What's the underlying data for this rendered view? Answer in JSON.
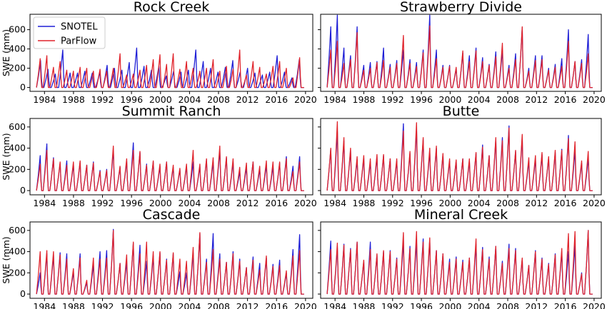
{
  "colors": {
    "snotel": "#1f1fd6",
    "parflow": "#e0242c",
    "axis": "#000000",
    "legend_border": "#cccccc"
  },
  "legend": {
    "position": "top-left",
    "entries": [
      "SNOTEL",
      "ParFlow"
    ]
  },
  "chart_data": [
    {
      "type": "line",
      "title": "Rock Creek",
      "xlabel": "",
      "ylabel": "SWE (mm)",
      "xlim": [
        1982,
        2021
      ],
      "ylim": [
        -40,
        760
      ],
      "xticks": [
        1984,
        1988,
        1992,
        1996,
        2000,
        2004,
        2008,
        2012,
        2016,
        2020
      ],
      "yticks": [
        0,
        200,
        400,
        600
      ],
      "show_yticklabels": true,
      "legend": true,
      "series": [
        {
          "name": "SNOTEL",
          "peaks": [
            280,
            190,
            140,
            390,
            150,
            150,
            170,
            150,
            160,
            230,
            200,
            180,
            260,
            410,
            220,
            180,
            220,
            120,
            170,
            160,
            180,
            390,
            270,
            200,
            160,
            210,
            280,
            160,
            200,
            150,
            130,
            160,
            330,
            160,
            100,
            290
          ]
        },
        {
          "name": "ParFlow",
          "peaks": [
            300,
            330,
            210,
            270,
            180,
            170,
            210,
            200,
            170,
            190,
            170,
            200,
            350,
            130,
            140,
            180,
            230,
            290,
            340,
            240,
            350,
            190,
            270,
            200,
            170,
            200,
            290,
            170,
            220,
            190,
            390,
            130,
            270,
            210,
            140,
            220,
            270,
            200,
            100,
            310
          ]
        }
      ]
    },
    {
      "type": "line",
      "title": "Strawberry Divide",
      "xlabel": "",
      "ylabel": "",
      "xlim": [
        1982,
        2021
      ],
      "ylim": [
        -40,
        760
      ],
      "xticks": [
        1984,
        1988,
        1992,
        1996,
        2000,
        2004,
        2008,
        2012,
        2016,
        2020
      ],
      "yticks": [
        0,
        200,
        400,
        600
      ],
      "show_yticklabels": false,
      "legend": false,
      "series": [
        {
          "name": "SNOTEL",
          "peaks": [
            630,
            750,
            410,
            330,
            630,
            230,
            260,
            270,
            410,
            240,
            280,
            390,
            290,
            260,
            390,
            750,
            390,
            230,
            230,
            200,
            360,
            330,
            410,
            310,
            240,
            370,
            390,
            230,
            350,
            620,
            200,
            330,
            330,
            200,
            240,
            300,
            600,
            270,
            290,
            550
          ]
        },
        {
          "name": "ParFlow",
          "peaks": [
            390,
            480,
            250,
            290,
            570,
            180,
            200,
            260,
            280,
            210,
            250,
            540,
            250,
            220,
            360,
            640,
            300,
            210,
            220,
            210,
            380,
            270,
            380,
            270,
            230,
            320,
            460,
            200,
            290,
            630,
            170,
            280,
            290,
            180,
            210,
            220,
            480,
            270,
            250,
            350
          ]
        }
      ]
    },
    {
      "type": "line",
      "title": "Summit Ranch",
      "xlabel": "",
      "ylabel": "SWE (mm)",
      "xlim": [
        1982,
        2021
      ],
      "ylim": [
        -40,
        680
      ],
      "xticks": [
        1984,
        1988,
        1992,
        1996,
        2000,
        2004,
        2008,
        2012,
        2016,
        2020
      ],
      "yticks": [
        0,
        200,
        400,
        600
      ],
      "show_yticklabels": true,
      "legend": false,
      "series": [
        {
          "name": "SNOTEL",
          "peaks": [
            330,
            440,
            310,
            260,
            280,
            250,
            270,
            240,
            270,
            190,
            200,
            390,
            220,
            280,
            450,
            360,
            250,
            270,
            230,
            270,
            220,
            200,
            230,
            270,
            230,
            290,
            270,
            380,
            310,
            270,
            180,
            220,
            270,
            200,
            240,
            230,
            260,
            320,
            230,
            320
          ]
        },
        {
          "name": "ParFlow",
          "peaks": [
            250,
            380,
            300,
            270,
            240,
            270,
            280,
            240,
            260,
            180,
            190,
            420,
            230,
            300,
            380,
            370,
            240,
            280,
            250,
            270,
            240,
            210,
            250,
            380,
            250,
            300,
            310,
            420,
            320,
            300,
            220,
            260,
            270,
            230,
            280,
            270,
            270,
            300,
            180,
            270
          ]
        }
      ]
    },
    {
      "type": "line",
      "title": "Butte",
      "xlabel": "",
      "ylabel": "",
      "xlim": [
        1982,
        2021
      ],
      "ylim": [
        -40,
        680
      ],
      "xticks": [
        1984,
        1988,
        1992,
        1996,
        2000,
        2004,
        2008,
        2012,
        2016,
        2020
      ],
      "yticks": [
        0,
        200,
        400,
        600
      ],
      "show_yticklabels": false,
      "legend": false,
      "series": [
        {
          "name": "SNOTEL",
          "peaks": [
            390,
            560,
            470,
            380,
            290,
            310,
            270,
            320,
            330,
            300,
            280,
            630,
            350,
            590,
            480,
            370,
            400,
            340,
            280,
            280,
            300,
            280,
            350,
            430,
            330,
            480,
            500,
            610,
            370,
            500,
            280,
            300,
            340,
            310,
            360,
            390,
            520,
            380,
            260,
            310
          ]
        },
        {
          "name": "ParFlow",
          "peaks": [
            400,
            650,
            500,
            400,
            320,
            330,
            300,
            340,
            340,
            300,
            300,
            560,
            370,
            640,
            500,
            400,
            420,
            350,
            300,
            290,
            300,
            300,
            360,
            410,
            330,
            500,
            470,
            590,
            380,
            530,
            310,
            330,
            360,
            320,
            380,
            380,
            490,
            460,
            280,
            370
          ]
        }
      ]
    },
    {
      "type": "line",
      "title": "Cascade",
      "xlabel": "",
      "ylabel": "SWE (mm)",
      "xlim": [
        1982,
        2021
      ],
      "ylim": [
        -40,
        680
      ],
      "xticks": [
        1984,
        1988,
        1992,
        1996,
        2000,
        2004,
        2008,
        2012,
        2016,
        2020
      ],
      "yticks": [
        0,
        200,
        400,
        600
      ],
      "show_yticklabels": true,
      "legend": false,
      "series": [
        {
          "name": "SNOTEL",
          "peaks": [
            200,
            380,
            370,
            390,
            380,
            210,
            380,
            110,
            280,
            400,
            410,
            610,
            290,
            310,
            480,
            460,
            310,
            360,
            390,
            330,
            380,
            210,
            200,
            390,
            570,
            330,
            570,
            380,
            300,
            400,
            330,
            250,
            350,
            290,
            340,
            280,
            320,
            200,
            420,
            560
          ]
        },
        {
          "name": "ParFlow",
          "peaks": [
            400,
            410,
            400,
            370,
            330,
            240,
            340,
            130,
            340,
            330,
            340,
            600,
            290,
            370,
            490,
            380,
            490,
            400,
            400,
            320,
            390,
            330,
            310,
            440,
            580,
            300,
            420,
            330,
            300,
            380,
            310,
            250,
            320,
            230,
            360,
            260,
            270,
            220,
            360,
            410
          ]
        }
      ]
    },
    {
      "type": "line",
      "title": "Mineral Creek",
      "xlabel": "",
      "ylabel": "",
      "xlim": [
        1982,
        2021
      ],
      "ylim": [
        -40,
        680
      ],
      "xticks": [
        1984,
        1988,
        1992,
        1996,
        2000,
        2004,
        2008,
        2012,
        2016,
        2020
      ],
      "yticks": [
        0,
        200,
        400,
        600
      ],
      "show_yticklabels": false,
      "legend": false,
      "series": [
        {
          "name": "SNOTEL",
          "peaks": [
            500,
            440,
            470,
            430,
            490,
            310,
            490,
            370,
            400,
            410,
            340,
            510,
            450,
            500,
            520,
            510,
            410,
            380,
            330,
            350,
            320,
            340,
            470,
            440,
            350,
            450,
            310,
            470,
            430,
            330,
            270,
            410,
            340,
            290,
            380,
            400,
            400,
            460,
            200,
            600
          ]
        },
        {
          "name": "ParFlow",
          "peaks": [
            420,
            480,
            460,
            420,
            490,
            320,
            420,
            380,
            410,
            400,
            330,
            580,
            430,
            590,
            490,
            530,
            410,
            380,
            300,
            330,
            300,
            340,
            520,
            420,
            330,
            450,
            290,
            430,
            410,
            340,
            270,
            400,
            330,
            280,
            370,
            430,
            570,
            590,
            190,
            600
          ]
        }
      ]
    }
  ]
}
